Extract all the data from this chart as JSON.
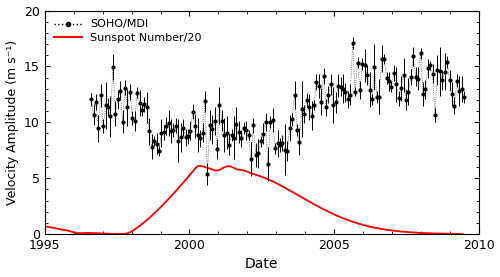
{
  "title": "",
  "xlabel": "Date",
  "ylabel": "Velocity Amplitude (m s⁻¹)",
  "xlim": [
    1995,
    2010
  ],
  "ylim": [
    0,
    20
  ],
  "yticks": [
    0,
    5,
    10,
    15,
    20
  ],
  "xticks": [
    1995,
    2000,
    2005,
    2010
  ],
  "legend_labels": [
    "SOHO/MDI",
    "Sunspot Number/20"
  ],
  "mdi_color": "black",
  "sunspot_color": "red",
  "figsize": [
    5.0,
    2.77
  ],
  "dpi": 100
}
